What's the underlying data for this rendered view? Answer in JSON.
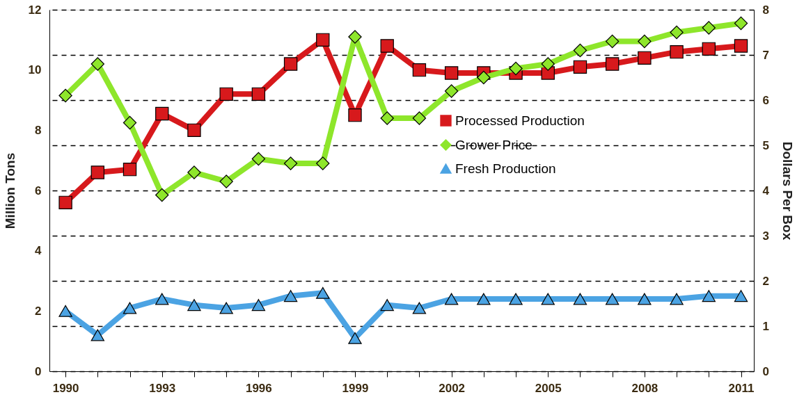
{
  "chart_data": {
    "type": "line",
    "ylabel": "Million Tons",
    "y2label": "Dollars Per Box",
    "x": [
      1990,
      1991,
      1992,
      1993,
      1994,
      1995,
      1996,
      1997,
      1998,
      1999,
      2000,
      2001,
      2002,
      2003,
      2004,
      2005,
      2006,
      2007,
      2008,
      2009,
      2010,
      2011
    ],
    "series": [
      {
        "name": "Processed Production",
        "color": "#d7191c",
        "marker": "square",
        "axis": "y",
        "values": [
          5.6,
          6.6,
          6.7,
          8.55,
          8.0,
          9.2,
          9.2,
          10.2,
          11.0,
          8.5,
          10.8,
          10.0,
          9.9,
          9.9,
          9.9,
          9.9,
          10.1,
          10.2,
          10.4,
          10.6,
          10.7,
          10.8
        ]
      },
      {
        "name": "Grower Price",
        "color": "#8ee62b",
        "marker": "diamond",
        "axis": "y2",
        "values": [
          6.1,
          6.8,
          5.5,
          3.9,
          4.4,
          4.2,
          4.7,
          4.6,
          4.6,
          7.4,
          5.6,
          5.6,
          6.2,
          6.5,
          6.7,
          6.8,
          7.1,
          7.3,
          7.3,
          7.5,
          7.6,
          7.7
        ]
      },
      {
        "name": "Fresh Production",
        "color": "#4ba3e3",
        "marker": "triangle",
        "axis": "y",
        "values": [
          2.0,
          1.2,
          2.1,
          2.4,
          2.2,
          2.1,
          2.2,
          2.5,
          2.6,
          1.1,
          2.2,
          2.1,
          2.4,
          2.4,
          2.4,
          2.4,
          2.4,
          2.4,
          2.4,
          2.4,
          2.5,
          2.5
        ]
      }
    ],
    "xlim": [
      1989.5,
      2011.4
    ],
    "xticks": [
      1990,
      {
        "value": 1991,
        "label": null
      },
      {
        "value": 1992,
        "label": null
      },
      1993,
      {
        "value": 1994,
        "label": null
      },
      {
        "value": 1995,
        "label": null
      },
      1996,
      {
        "value": 1997,
        "label": null
      },
      {
        "value": 1998,
        "label": null
      },
      1999,
      {
        "value": 2000,
        "label": null
      },
      {
        "value": 2001,
        "label": null
      },
      2002,
      {
        "value": 2003,
        "label": null
      },
      {
        "value": 2004,
        "label": null
      },
      2005,
      {
        "value": 2006,
        "label": null
      },
      {
        "value": 2007,
        "label": null
      },
      2008,
      {
        "value": 2009,
        "label": null
      },
      {
        "value": 2010,
        "label": null
      },
      2011
    ],
    "ylim": [
      0,
      12
    ],
    "yticks": [
      0,
      2,
      4,
      6,
      8,
      10,
      12
    ],
    "y2lim": [
      0,
      8
    ],
    "y2ticks": [
      0,
      1,
      2,
      3,
      4,
      5,
      6,
      7,
      8
    ],
    "grid": "y2",
    "line_style": "solid",
    "legend": "right"
  }
}
